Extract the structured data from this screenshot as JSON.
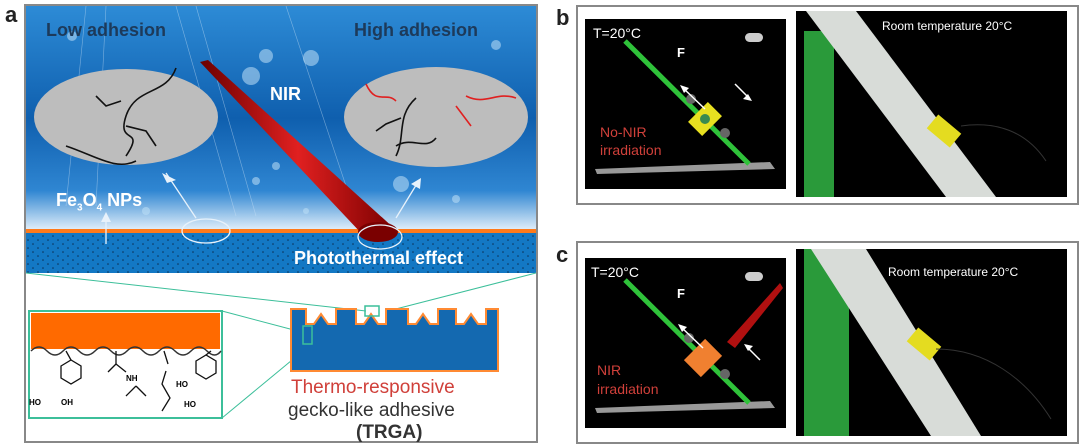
{
  "panel_labels": {
    "a": "a",
    "b": "b",
    "c": "c"
  },
  "panel_a": {
    "low_adhesion": "Low adhesion",
    "high_adhesion": "High adhesion",
    "nir": "NIR",
    "fe3o4_main": "Fe",
    "fe3o4_sub1": "3",
    "fe3o4_o": "O",
    "fe3o4_sub2": "4",
    "fe3o4_rest": " NPs",
    "photothermal": "Photothermal effect",
    "trga_line1": "Thermo-responsive",
    "trga_line2": "gecko-like adhesive",
    "trga_line3": "(TRGA)",
    "chem_labels": {
      "ho1": "HO",
      "oh1": "OH",
      "nh": "NH",
      "ho2": "HO",
      "ho3": "HO"
    }
  },
  "panel_b": {
    "temp": "T=20°C",
    "force": "F",
    "condition_line1": "No-NIR",
    "condition_line2": "irradiation",
    "photo_caption": "Room temperature 20°C"
  },
  "panel_c": {
    "temp": "T=20°C",
    "force": "F",
    "condition_line1": "NIR",
    "condition_line2": "irradiation",
    "photo_caption": "Room temperature 20°C"
  },
  "colors": {
    "blue": "#1a6fb8",
    "orange": "#ff6a00",
    "green": "#2fc23a",
    "red_text": "#d0403a",
    "teal": "#3cbf9a"
  }
}
